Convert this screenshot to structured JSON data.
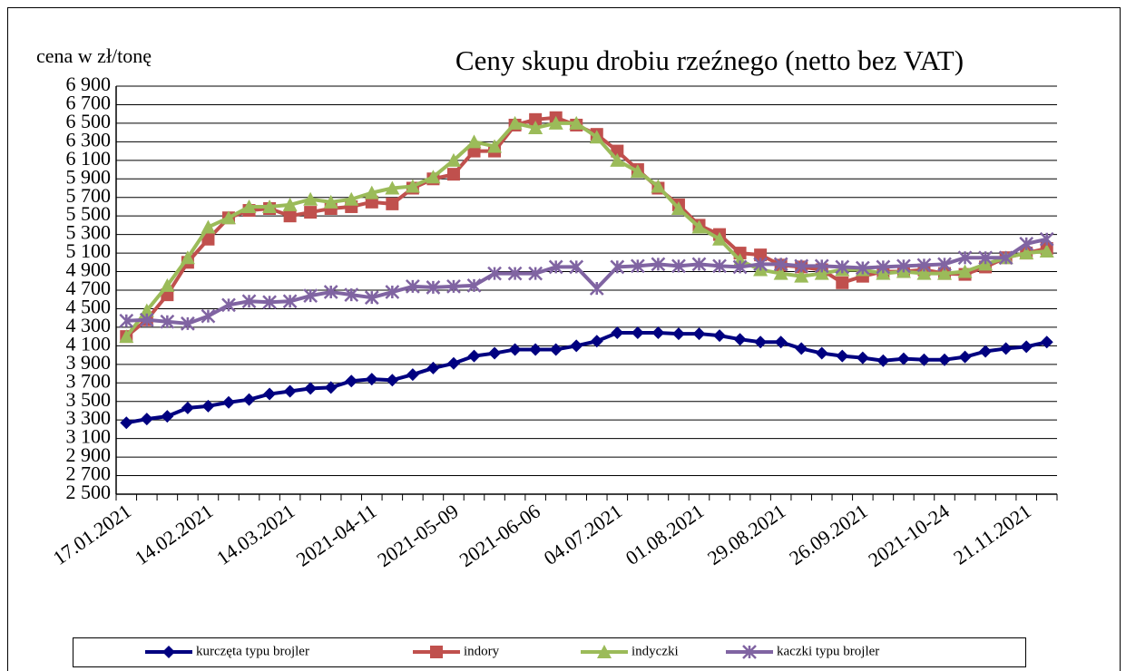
{
  "chart_data": {
    "type": "line",
    "title": "Ceny skupu drobiu rzeźnego (netto bez VAT)",
    "y_label": "cena w zł/tonę",
    "categories": [
      "17.01.2021",
      null,
      null,
      null,
      "14.02.2021",
      null,
      null,
      null,
      "14.03.2021",
      null,
      null,
      null,
      "2021-04-11",
      null,
      null,
      null,
      "2021-05-09",
      null,
      null,
      null,
      "2021-06-06",
      null,
      null,
      null,
      "04.07.2021",
      null,
      null,
      null,
      "01.08.2021",
      null,
      null,
      null,
      "29.08.2021",
      null,
      null,
      null,
      "26.09.2021",
      null,
      null,
      null,
      "2021-10-24",
      null,
      null,
      null,
      "21.11.2021",
      null
    ],
    "ylim": [
      2500,
      6900
    ],
    "yticks": [
      {
        "value": 2500,
        "label": "2 500"
      },
      {
        "value": 2700,
        "label": "2 700"
      },
      {
        "value": 2900,
        "label": "2 900"
      },
      {
        "value": 3100,
        "label": "3 100"
      },
      {
        "value": 3300,
        "label": "3 300"
      },
      {
        "value": 3500,
        "label": "3 500"
      },
      {
        "value": 3700,
        "label": "3 700"
      },
      {
        "value": 3900,
        "label": "3 900"
      },
      {
        "value": 4100,
        "label": "4 100"
      },
      {
        "value": 4300,
        "label": "4 300"
      },
      {
        "value": 4500,
        "label": "4 500"
      },
      {
        "value": 4700,
        "label": "4 700"
      },
      {
        "value": 4900,
        "label": "4 900"
      },
      {
        "value": 5100,
        "label": "5 100"
      },
      {
        "value": 5300,
        "label": "5 300"
      },
      {
        "value": 5500,
        "label": "5 500"
      },
      {
        "value": 5700,
        "label": "5 700"
      },
      {
        "value": 5900,
        "label": "5 900"
      },
      {
        "value": 6100,
        "label": "6 100"
      },
      {
        "value": 6300,
        "label": "6 300"
      },
      {
        "value": 6500,
        "label": "6 500"
      },
      {
        "value": 6700,
        "label": "6 700"
      },
      {
        "value": 6900,
        "label": "6 900"
      }
    ],
    "grid": true,
    "legend": "bottom",
    "series": [
      {
        "name": "kurczęta typu brojler",
        "color": "#000080",
        "marker": "diamond",
        "values": [
          3270,
          3310,
          3340,
          3430,
          3450,
          3490,
          3520,
          3580,
          3610,
          3640,
          3650,
          3720,
          3740,
          3730,
          3790,
          3860,
          3910,
          3990,
          4020,
          4060,
          4060,
          4060,
          4100,
          4150,
          4240,
          4240,
          4240,
          4230,
          4230,
          4210,
          4170,
          4140,
          4140,
          4070,
          4020,
          3990,
          3970,
          3940,
          3960,
          3950,
          3950,
          3980,
          4040,
          4070,
          4090,
          4140
        ]
      },
      {
        "name": "indory",
        "color": "#c0504d",
        "marker": "square",
        "values": [
          4200,
          4380,
          4650,
          5000,
          5250,
          5480,
          5560,
          5580,
          5500,
          5540,
          5580,
          5600,
          5650,
          5630,
          5800,
          5900,
          5950,
          6200,
          6200,
          6480,
          6540,
          6560,
          6480,
          6380,
          6200,
          6000,
          5800,
          5620,
          5400,
          5300,
          5100,
          5080,
          4970,
          4950,
          4920,
          4780,
          4850,
          4900,
          4900,
          4920,
          4880,
          4870,
          4950,
          5050,
          5100,
          5150
        ]
      },
      {
        "name": "indyczki",
        "color": "#9bbb59",
        "marker": "triangle",
        "values": [
          4200,
          4480,
          4750,
          5050,
          5380,
          5480,
          5600,
          5600,
          5620,
          5680,
          5650,
          5680,
          5750,
          5800,
          5820,
          5920,
          6100,
          6300,
          6250,
          6500,
          6450,
          6500,
          6500,
          6350,
          6100,
          5980,
          5820,
          5580,
          5380,
          5250,
          5020,
          4920,
          4880,
          4850,
          4880,
          4920,
          4920,
          4880,
          4900,
          4880,
          4880,
          4900,
          4980,
          5050,
          5100,
          5120
        ]
      },
      {
        "name": "kaczki typu brojler",
        "color": "#8064a2",
        "marker": "star",
        "values": [
          4370,
          4380,
          4360,
          4340,
          4420,
          4540,
          4580,
          4570,
          4580,
          4640,
          4680,
          4650,
          4620,
          4680,
          4740,
          4730,
          4740,
          4750,
          4880,
          4880,
          4880,
          4950,
          4950,
          4720,
          4950,
          4960,
          4980,
          4960,
          4980,
          4960,
          4950,
          4980,
          4980,
          4960,
          4960,
          4950,
          4940,
          4950,
          4960,
          4970,
          4980,
          5050,
          5050,
          5050,
          5200,
          5250
        ]
      }
    ]
  }
}
